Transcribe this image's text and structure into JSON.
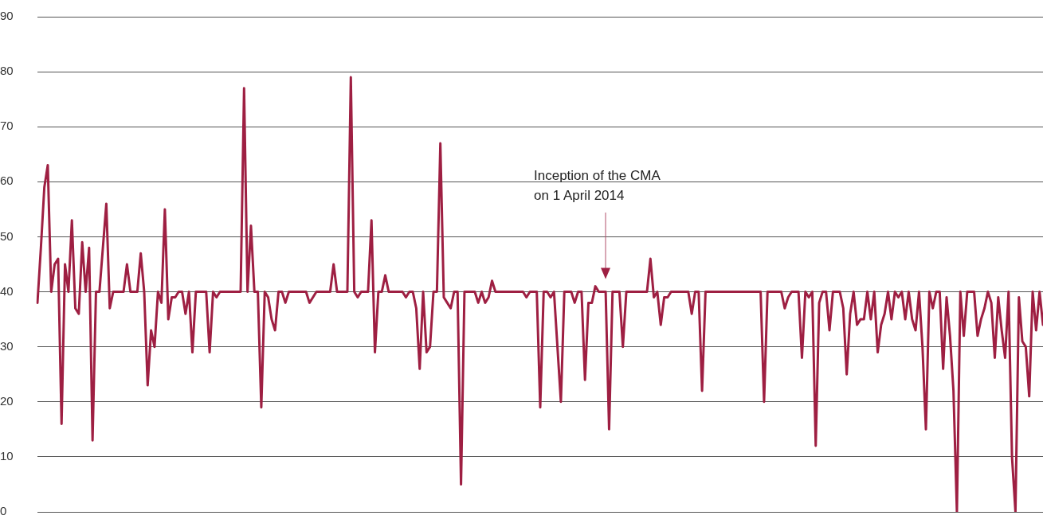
{
  "chart_data": {
    "type": "line",
    "categories": [
      null,
      null,
      null,
      null,
      null,
      null,
      null,
      null,
      null,
      null,
      null,
      null,
      null,
      null,
      null,
      null,
      null,
      null,
      null,
      null,
      null,
      null,
      null,
      null,
      null,
      null,
      null,
      null,
      null,
      null,
      null,
      null,
      null,
      null,
      null,
      null,
      null,
      null,
      null,
      null,
      null,
      null,
      null,
      null,
      null,
      null,
      null,
      null,
      null,
      null,
      null,
      null,
      null,
      null,
      null,
      null,
      null,
      null,
      null,
      null,
      null,
      null,
      null,
      null,
      null,
      null,
      null,
      null,
      null,
      null,
      null,
      null,
      null,
      null,
      null,
      null,
      null,
      null,
      null,
      null,
      null,
      null,
      null,
      null,
      null,
      null,
      null,
      null,
      null,
      null,
      null,
      null,
      null,
      null,
      null,
      null,
      null,
      null,
      null,
      null,
      null,
      null,
      null,
      null,
      null,
      null,
      null,
      null,
      null,
      null,
      null,
      null,
      null,
      null,
      null,
      null,
      null,
      null,
      null,
      null,
      null,
      null,
      null,
      null,
      null,
      null,
      null,
      null,
      null,
      null,
      null,
      null,
      null,
      null,
      null,
      null,
      null,
      null,
      null,
      null,
      null,
      null,
      null,
      null,
      null,
      null,
      null,
      null,
      null,
      null,
      null,
      null,
      null,
      null,
      null,
      null,
      null,
      null,
      null,
      null,
      null,
      null,
      null,
      null,
      null,
      null,
      null,
      null,
      null,
      null,
      null,
      null,
      null,
      null,
      null,
      null,
      null,
      null,
      null,
      null,
      null,
      null,
      null,
      null,
      null,
      null,
      null,
      null,
      null,
      null,
      null,
      null,
      null,
      null,
      null,
      null,
      null,
      null,
      null,
      null,
      null,
      null,
      null,
      null,
      null,
      null,
      null,
      null,
      null,
      null,
      null,
      null,
      null,
      null,
      null,
      null,
      null,
      null,
      null,
      null,
      null,
      null,
      null,
      null,
      null,
      null,
      null,
      null,
      null,
      null,
      null,
      null,
      null,
      null,
      null,
      null,
      null,
      null,
      null,
      null,
      null,
      null,
      null,
      null,
      null,
      null,
      null,
      null,
      null,
      null,
      null,
      null,
      null,
      null,
      null,
      null,
      null,
      null,
      null,
      null,
      null,
      null,
      null,
      null,
      null,
      null,
      null,
      null,
      null,
      null,
      null,
      null,
      null,
      null,
      null,
      null,
      null,
      null,
      null,
      null,
      null,
      null,
      null,
      null,
      null,
      null,
      null,
      null,
      null,
      null,
      null,
      null,
      null
    ],
    "series": [
      {
        "color": "#9e1f42",
        "values": [
          38,
          48,
          59,
          63,
          40,
          45,
          46,
          16,
          45,
          40,
          53,
          37,
          36,
          49,
          40,
          48,
          13,
          40,
          40,
          48,
          56,
          37,
          40,
          40,
          40,
          40,
          45,
          40,
          40,
          40,
          47,
          40,
          23,
          33,
          30,
          40,
          38,
          55,
          35,
          39,
          39,
          40,
          40,
          36,
          40,
          29,
          40,
          40,
          40,
          40,
          29,
          40,
          39,
          40,
          40,
          40,
          40,
          40,
          40,
          40,
          77,
          40,
          52,
          40,
          40,
          19,
          40,
          39,
          35,
          33,
          40,
          40,
          38,
          40,
          40,
          40,
          40,
          40,
          40,
          38,
          39,
          40,
          40,
          40,
          40,
          40,
          45,
          40,
          40,
          40,
          40,
          79,
          40,
          39,
          40,
          40,
          40,
          53,
          29,
          40,
          40,
          43,
          40,
          40,
          40,
          40,
          40,
          39,
          40,
          40,
          37,
          26,
          40,
          29,
          30,
          40,
          40,
          67,
          39,
          38,
          37,
          40,
          40,
          5,
          40,
          40,
          40,
          40,
          38,
          40,
          38,
          39,
          42,
          40,
          40,
          40,
          40,
          40,
          40,
          40,
          40,
          40,
          39,
          40,
          40,
          40,
          19,
          40,
          40,
          39,
          40,
          30,
          20,
          40,
          40,
          40,
          38,
          40,
          40,
          24,
          38,
          38,
          41,
          40,
          40,
          40,
          15,
          40,
          40,
          40,
          30,
          40,
          40,
          40,
          40,
          40,
          40,
          40,
          46,
          39,
          40,
          34,
          39,
          39,
          40,
          40,
          40,
          40,
          40,
          40,
          36,
          40,
          40,
          22,
          40,
          40,
          40,
          40,
          40,
          40,
          40,
          40,
          40,
          40,
          40,
          40,
          40,
          40,
          40,
          40,
          40,
          20,
          40,
          40,
          40,
          40,
          40,
          37,
          39,
          40,
          40,
          40,
          28,
          40,
          39,
          40,
          12,
          38,
          40,
          40,
          33,
          40,
          40,
          40,
          37,
          25,
          36,
          40,
          34,
          35,
          35,
          40,
          35,
          40,
          29,
          34,
          36,
          40,
          35,
          40,
          39,
          40,
          35,
          40,
          35,
          33,
          40,
          30,
          15,
          40,
          37,
          40,
          40,
          26,
          39,
          32,
          22,
          0,
          40,
          32,
          40,
          40,
          40,
          32,
          35,
          37,
          40,
          38,
          28,
          39,
          33,
          28,
          40,
          10,
          0,
          39,
          31,
          30,
          21,
          40,
          33,
          40,
          34
        ]
      }
    ],
    "ylim": [
      0,
      90
    ],
    "yticks": [
      0,
      10,
      20,
      30,
      40,
      50,
      60,
      70,
      80,
      90
    ],
    "grid": "y",
    "legend": false,
    "marker": "none",
    "line_style": "solid",
    "tick_labels": "y",
    "annotations": [
      "Inception of the CMA\non 1 April 2014"
    ]
  }
}
